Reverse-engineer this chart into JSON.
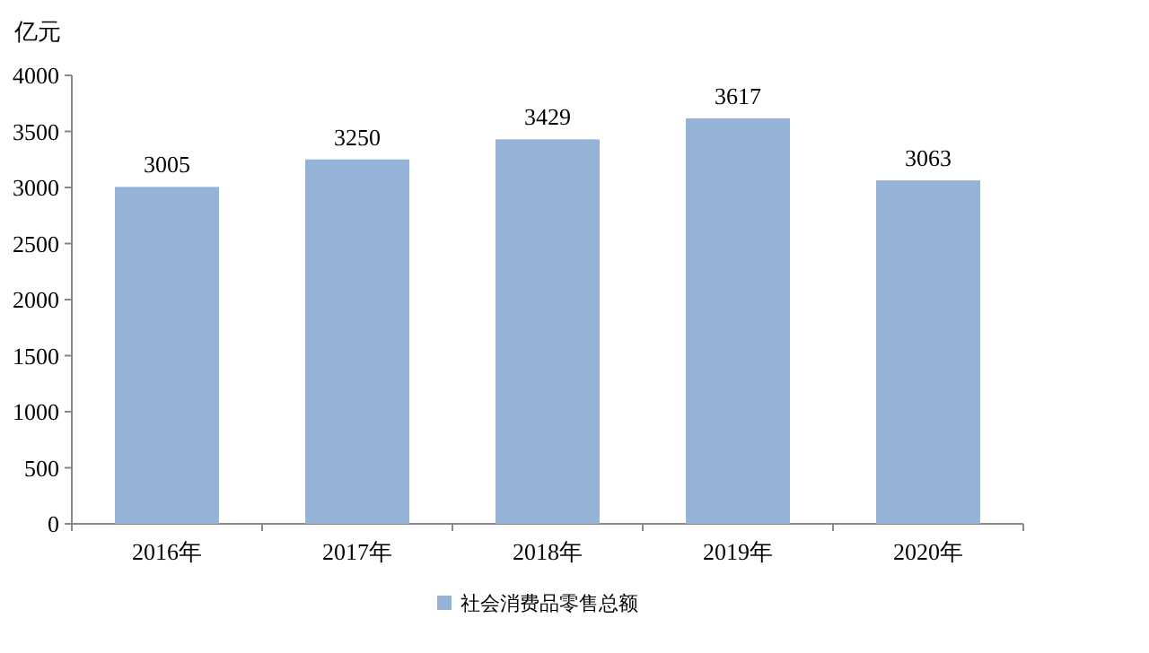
{
  "chart_data": {
    "type": "bar",
    "ylabel": "亿元",
    "categories": [
      "2016年",
      "2017年",
      "2018年",
      "2019年",
      "2020年"
    ],
    "series": [
      {
        "name": "社会消费品零售总额",
        "color": "#95b3d7",
        "values": [
          3005,
          3250,
          3429,
          3617,
          3063
        ]
      }
    ],
    "ylim": [
      0,
      4000
    ],
    "yticks": [
      0,
      500,
      1000,
      1500,
      2000,
      2500,
      3000,
      3500,
      4000
    ],
    "data_labels": true,
    "legend": "bottom",
    "grid": false
  }
}
